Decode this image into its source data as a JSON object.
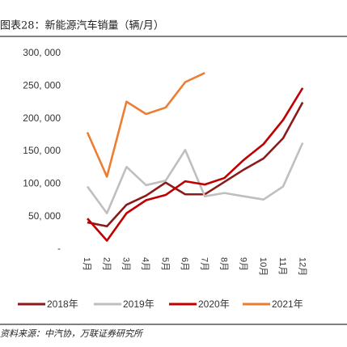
{
  "chart_data": {
    "type": "line",
    "title": "图表28：新能源汽车销量（辆/月）",
    "source": "资料来源：中汽协，万联证券研究所",
    "categories": [
      "1月",
      "2月",
      "3月",
      "4月",
      "5月",
      "6月",
      "7月",
      "8月",
      "9月",
      "10月",
      "11月",
      "12月"
    ],
    "series": [
      {
        "name": "2018年",
        "color": "#8b1a1a",
        "values": [
          41000,
          35000,
          68000,
          82000,
          102000,
          84000,
          84000,
          103000,
          122000,
          139000,
          170000,
          225000
        ]
      },
      {
        "name": "2019年",
        "color": "#bfbfbf",
        "values": [
          96000,
          55000,
          126000,
          98000,
          105000,
          152000,
          81000,
          86000,
          81000,
          76000,
          96000,
          163000
        ]
      },
      {
        "name": "2020年",
        "color": "#c00000",
        "values": [
          47000,
          13000,
          55000,
          75000,
          83000,
          104000,
          99000,
          109000,
          137000,
          161000,
          198000,
          247000
        ]
      },
      {
        "name": "2021年",
        "color": "#ed7d31",
        "values": [
          179000,
          111000,
          226000,
          207000,
          217000,
          256000,
          270000,
          null,
          null,
          null,
          null,
          null
        ]
      }
    ],
    "ylim": [
      0,
      300000
    ],
    "yticks": [
      {
        "value": 0,
        "label": "-"
      },
      {
        "value": 50000,
        "label": "50, 000"
      },
      {
        "value": 100000,
        "label": "100, 000"
      },
      {
        "value": 150000,
        "label": "150, 000"
      },
      {
        "value": 200000,
        "label": "200, 000"
      },
      {
        "value": 250000,
        "label": "250, 000"
      },
      {
        "value": 300000,
        "label": "300, 000"
      }
    ],
    "legend": "bottom"
  }
}
